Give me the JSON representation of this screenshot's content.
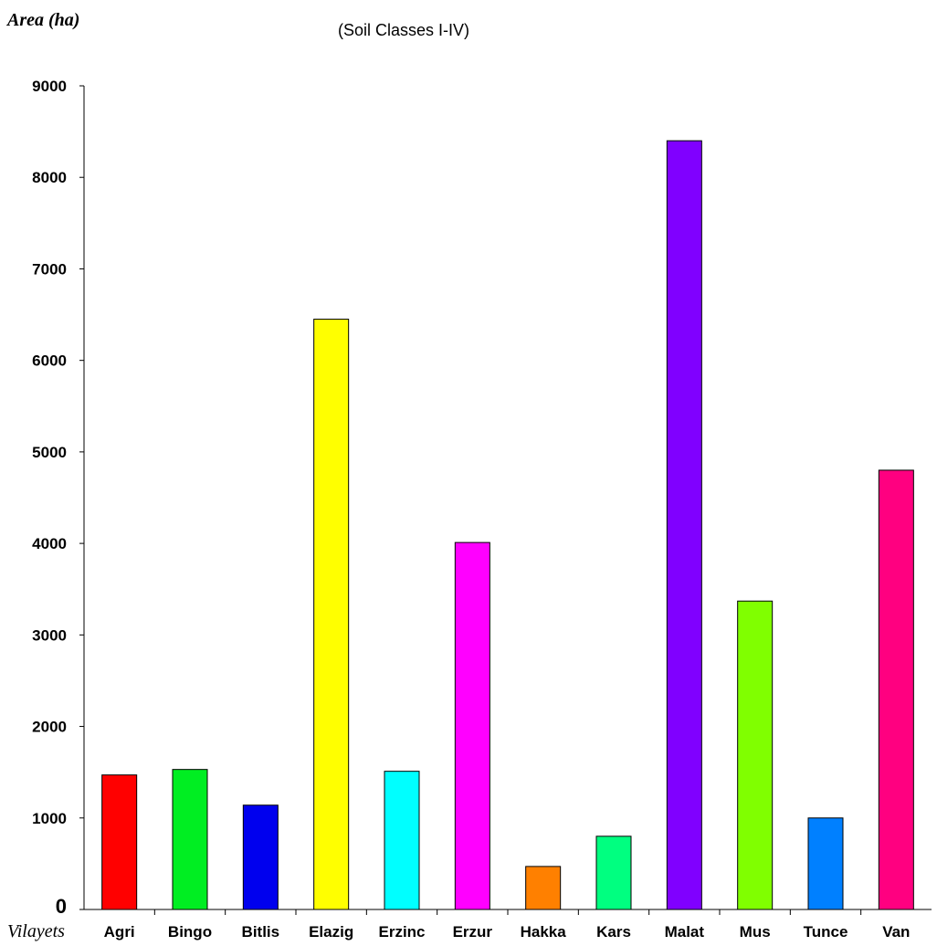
{
  "chart_data": {
    "type": "bar",
    "title": "",
    "subtitle": "(Soil Classes I-IV)",
    "ylabel": "Area (ha)",
    "xlabel": "Vilayets",
    "ylim": [
      0,
      9000
    ],
    "yticks": [
      "9000",
      "8000",
      "7000",
      "6000",
      "5000",
      "4000",
      "3000",
      "2000",
      "1000",
      "0"
    ],
    "ytick_values": [
      9000,
      8000,
      7000,
      6000,
      5000,
      4000,
      3000,
      2000,
      1000,
      0
    ],
    "grid": false,
    "legend": "none",
    "categories": [
      "Agri",
      "Bingo",
      "Bitlis",
      "Elazig",
      "Erzinc",
      "Erzur",
      "Hakka",
      "Kars",
      "Malat",
      "Mus",
      "Tunce",
      "Van"
    ],
    "values": [
      1470,
      1530,
      1140,
      6450,
      1510,
      4010,
      470,
      800,
      8400,
      3370,
      1000,
      4800
    ],
    "colors": [
      "#ff0000",
      "#00ee22",
      "#0000ee",
      "#ffff00",
      "#00ffff",
      "#ff00ff",
      "#ff8000",
      "#00ff80",
      "#8000ff",
      "#80ff00",
      "#0080ff",
      "#ff0080"
    ]
  }
}
